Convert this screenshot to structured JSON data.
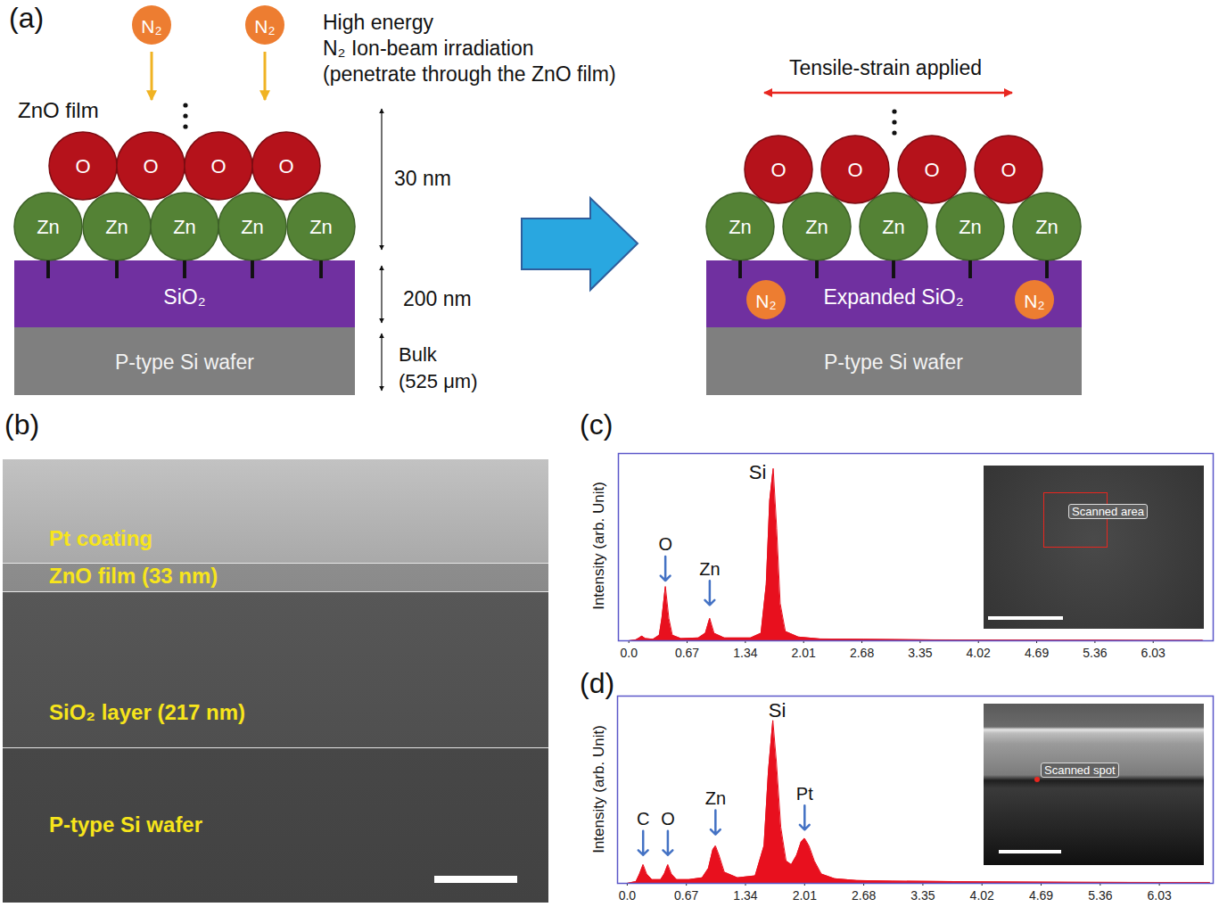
{
  "diagram": {
    "panel_label": "(a)",
    "ion_label": "N₂",
    "beam_text": [
      "High energy",
      "N₂ Ion-beam irradiation",
      "(penetrate through the ZnO film)"
    ],
    "film_label": "ZnO film",
    "atom_top": "O",
    "atom_bottom": "Zn",
    "layers_before": [
      "SiO₂",
      "P-type Si wafer"
    ],
    "layers_after": [
      "Expanded SiO₂",
      "P-type Si wafer"
    ],
    "dimensions": [
      [
        "30 nm"
      ],
      [
        "200 nm"
      ],
      [
        "Bulk",
        "(525 μm)"
      ]
    ],
    "strain_text": "Tensile-strain applied"
  },
  "micrograph": {
    "panel_label": "(b)",
    "layers": [
      "Pt coating",
      "ZnO film (33 nm)",
      "SiO₂ layer (217 nm)",
      "P-type Si wafer"
    ]
  },
  "chart_data": [
    {
      "type": "area",
      "panel_label": "(c)",
      "y_label": "Intensity (arb. Unit)",
      "color": "#e8101e",
      "x": [
        0.0,
        0.08,
        0.12,
        0.15,
        0.19,
        0.28,
        0.35,
        0.38,
        0.42,
        0.46,
        0.5,
        0.6,
        0.8,
        0.88,
        0.93,
        0.98,
        1.1,
        1.4,
        1.52,
        1.58,
        1.62,
        1.66,
        1.7,
        1.74,
        1.8,
        1.95,
        2.2,
        2.7,
        3.5,
        4.5,
        5.5,
        6.6
      ],
      "values": [
        0,
        0.005,
        0.015,
        0.025,
        0.012,
        0.008,
        0.03,
        0.12,
        0.29,
        0.12,
        0.03,
        0.012,
        0.015,
        0.04,
        0.12,
        0.04,
        0.015,
        0.015,
        0.04,
        0.3,
        0.75,
        0.92,
        0.6,
        0.2,
        0.05,
        0.02,
        0.01,
        0.008,
        0.005,
        0.004,
        0.003,
        0.002
      ],
      "xlim": [
        -0.12,
        6.72
      ],
      "xticks": [
        {
          "value": 0,
          "label": "0.0"
        },
        0.67,
        1.34,
        2.01,
        2.68,
        3.35,
        4.02,
        4.69,
        5.36,
        6.03
      ],
      "ylim": [
        0,
        1
      ],
      "tick_labels": "x",
      "arrow_labels": [
        {
          "text": "O",
          "x": 0.42,
          "y": 0.45
        },
        {
          "text": "Zn",
          "x": 0.93,
          "y": 0.32
        }
      ],
      "annotations": [
        {
          "text": "Si",
          "x": 1.48,
          "y": 0.9
        }
      ],
      "inset_label": "Scanned area"
    },
    {
      "type": "area",
      "panel_label": "(d)",
      "y_label": "Intensity (arb. Unit)",
      "color": "#e8101e",
      "x": [
        0.0,
        0.1,
        0.14,
        0.18,
        0.22,
        0.28,
        0.38,
        0.42,
        0.46,
        0.5,
        0.56,
        0.7,
        0.85,
        0.92,
        0.97,
        1.0,
        1.04,
        1.1,
        1.25,
        1.45,
        1.55,
        1.6,
        1.65,
        1.69,
        1.74,
        1.8,
        1.86,
        1.92,
        1.97,
        2.01,
        2.06,
        2.12,
        2.2,
        2.35,
        2.6,
        3.0,
        4.0,
        5.0,
        6.0,
        6.6
      ],
      "values": [
        0,
        0.01,
        0.05,
        0.1,
        0.05,
        0.02,
        0.02,
        0.05,
        0.1,
        0.05,
        0.02,
        0.02,
        0.03,
        0.08,
        0.18,
        0.2,
        0.15,
        0.06,
        0.03,
        0.04,
        0.2,
        0.6,
        0.87,
        0.65,
        0.3,
        0.12,
        0.1,
        0.15,
        0.22,
        0.24,
        0.2,
        0.12,
        0.05,
        0.025,
        0.015,
        0.012,
        0.008,
        0.006,
        0.005,
        0.005
      ],
      "xlim": [
        -0.11,
        6.64
      ],
      "xticks": [
        {
          "value": 0,
          "label": "0.0"
        },
        0.67,
        1.34,
        2.01,
        2.68,
        3.35,
        4.02,
        4.69,
        5.36,
        6.03
      ],
      "ylim": [
        0,
        1
      ],
      "tick_labels": "x",
      "arrow_labels": [
        {
          "text": "C",
          "x": 0.18,
          "y": 0.28
        },
        {
          "text": "O",
          "x": 0.46,
          "y": 0.28
        },
        {
          "text": "Zn",
          "x": 1.0,
          "y": 0.39
        },
        {
          "text": "Pt",
          "x": 2.01,
          "y": 0.415
        }
      ],
      "annotations": [
        {
          "text": "Si",
          "x": 1.7,
          "y": 0.92
        }
      ],
      "inset_label": "Scanned spot"
    }
  ]
}
